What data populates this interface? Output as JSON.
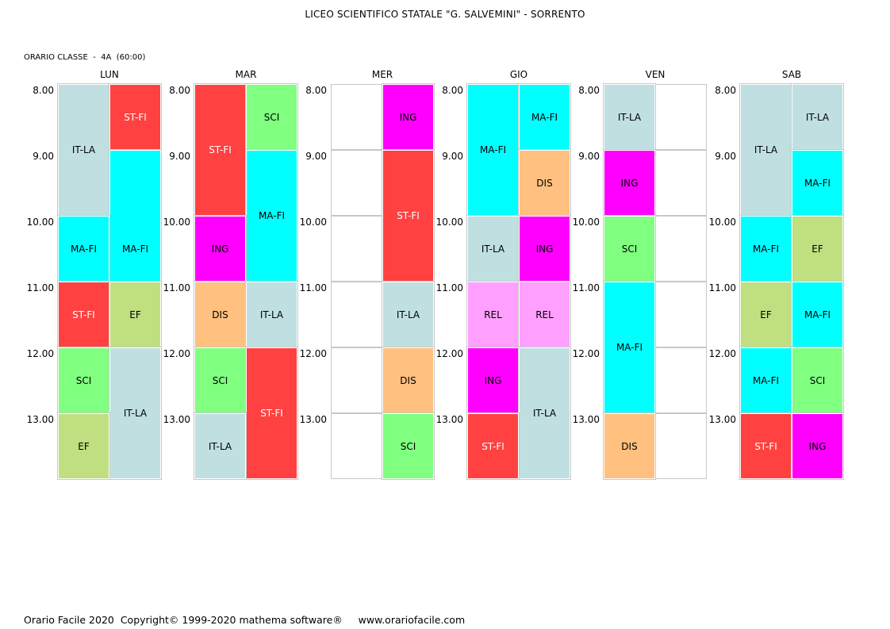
{
  "header": {
    "title": "LICEO SCIENTIFICO STATALE \"G. SALVEMINI\" - SORRENTO",
    "subtitle": "ORARIO CLASSE  -  4A  (60:00)"
  },
  "footer": {
    "text": "Orario Facile 2020  Copyright© 1999-2020 mathema software®     www.orariofacile.com"
  },
  "times": [
    "8.00",
    "9.00",
    "10.00",
    "11.00",
    "12.00",
    "13.00"
  ],
  "days": [
    {
      "name": "LUN",
      "cells": [
        {
          "label": "IT-LA",
          "type": "ital"
        },
        {
          "label": "ST-FI",
          "type": "stfi"
        },
        {
          "label": "MA-FI",
          "type": "mafi"
        },
        {
          "label": "MA-FI",
          "type": "mafi"
        },
        {
          "label": "ST-FI",
          "type": "stfi"
        },
        {
          "label": "EF",
          "type": "ef"
        },
        {
          "label": "SCI",
          "type": "sci"
        },
        {
          "label": "IT-LA",
          "type": "ital"
        },
        {
          "label": "EF",
          "type": "ef"
        }
      ]
    },
    {
      "name": "MAR",
      "cells": [
        {
          "label": "ST-FI",
          "type": "stfi"
        },
        {
          "label": "SCI",
          "type": "sci"
        },
        {
          "label": "MA-FI",
          "type": "mafi"
        },
        {
          "label": "ING",
          "type": "ing"
        },
        {
          "label": "DIS",
          "type": "dis"
        },
        {
          "label": "IT-LA",
          "type": "ital"
        },
        {
          "label": "SCI",
          "type": "sci"
        },
        {
          "label": "ST-FI",
          "type": "stfi"
        },
        {
          "label": "IT-LA",
          "type": "ital"
        }
      ]
    },
    {
      "name": "MER",
      "cells": [
        {
          "label": "",
          "type": "empty"
        },
        {
          "label": "ING",
          "type": "ing"
        },
        {
          "label": "",
          "type": "empty"
        },
        {
          "label": "ST-FI",
          "type": "stfi"
        },
        {
          "label": "",
          "type": "empty"
        },
        {
          "label": "",
          "type": "empty"
        },
        {
          "label": "IT-LA",
          "type": "ital"
        },
        {
          "label": "",
          "type": "empty"
        },
        {
          "label": "DIS",
          "type": "dis"
        },
        {
          "label": "",
          "type": "empty"
        },
        {
          "label": "SCI",
          "type": "sci"
        }
      ]
    },
    {
      "name": "GIO",
      "cells": [
        {
          "label": "MA-FI",
          "type": "mafi"
        },
        {
          "label": "MA-FI",
          "type": "mafi"
        },
        {
          "label": "DIS",
          "type": "dis"
        },
        {
          "label": "IT-LA",
          "type": "ital"
        },
        {
          "label": "ING",
          "type": "ing"
        },
        {
          "label": "REL",
          "type": "rel"
        },
        {
          "label": "REL",
          "type": "rel"
        },
        {
          "label": "ING",
          "type": "ing"
        },
        {
          "label": "IT-LA",
          "type": "ital"
        },
        {
          "label": "ST-FI",
          "type": "stfi"
        }
      ]
    },
    {
      "name": "VEN",
      "cells": [
        {
          "label": "IT-LA",
          "type": "ital"
        },
        {
          "label": "",
          "type": "empty"
        },
        {
          "label": "ING",
          "type": "ing"
        },
        {
          "label": "",
          "type": "empty"
        },
        {
          "label": "SCI",
          "type": "sci"
        },
        {
          "label": "",
          "type": "empty"
        },
        {
          "label": "MA-FI",
          "type": "mafi"
        },
        {
          "label": "",
          "type": "empty"
        },
        {
          "label": "",
          "type": "empty"
        },
        {
          "label": "DIS",
          "type": "dis"
        },
        {
          "label": "",
          "type": "empty"
        }
      ]
    },
    {
      "name": "SAB",
      "cells": [
        {
          "label": "IT-LA",
          "type": "ital"
        },
        {
          "label": "IT-LA",
          "type": "ital"
        },
        {
          "label": "MA-FI",
          "type": "mafi"
        },
        {
          "label": "MA-FI",
          "type": "mafi"
        },
        {
          "label": "EF",
          "type": "ef"
        },
        {
          "label": "EF",
          "type": "ef"
        },
        {
          "label": "MA-FI",
          "type": "mafi"
        },
        {
          "label": "MA-FI",
          "type": "mafi"
        },
        {
          "label": "SCI",
          "type": "sci"
        },
        {
          "label": "ST-FI",
          "type": "stfi"
        },
        {
          "label": "ING",
          "type": "ing"
        }
      ]
    }
  ]
}
